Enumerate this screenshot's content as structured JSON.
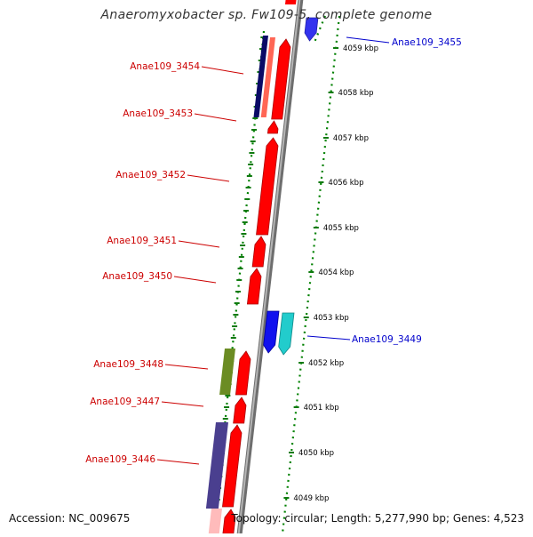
{
  "title": "Anaeromyxobacter sp. Fw109-5, complete genome",
  "footer": {
    "accession": "Accession: NC_009675",
    "summary": "Topology: circular; Length: 5,277,990 bp; Genes: 4,523"
  },
  "colors": {
    "forward_gene": "#ff0000",
    "label_red": "#cc0000",
    "label_blue": "#0000cc",
    "backbone": "#8c8c8c",
    "tick": "#008000"
  },
  "diagram": {
    "ruler_ticks": [
      {
        "label": "4059 kbp"
      },
      {
        "label": "4058 kbp"
      },
      {
        "label": "4057 kbp"
      },
      {
        "label": "4056 kbp"
      },
      {
        "label": "4055 kbp"
      },
      {
        "label": "4054 kbp"
      },
      {
        "label": "4053 kbp"
      },
      {
        "label": "4052 kbp"
      },
      {
        "label": "4051 kbp"
      },
      {
        "label": "4050 kbp"
      },
      {
        "label": "4049 kbp"
      }
    ],
    "gene_labels": [
      {
        "text": "Anae109_3455",
        "color": "#0000cc"
      },
      {
        "text": "Anae109_3454",
        "color": "#cc0000"
      },
      {
        "text": "Anae109_3453",
        "color": "#cc0000"
      },
      {
        "text": "Anae109_3452",
        "color": "#cc0000"
      },
      {
        "text": "Anae109_3451",
        "color": "#cc0000"
      },
      {
        "text": "Anae109_3450",
        "color": "#cc0000"
      },
      {
        "text": "Anae109_3449",
        "color": "#0000cc"
      },
      {
        "text": "Anae109_3448",
        "color": "#cc0000"
      },
      {
        "text": "Anae109_3447",
        "color": "#cc0000"
      },
      {
        "text": "Anae109_3446",
        "color": "#cc0000"
      }
    ]
  }
}
